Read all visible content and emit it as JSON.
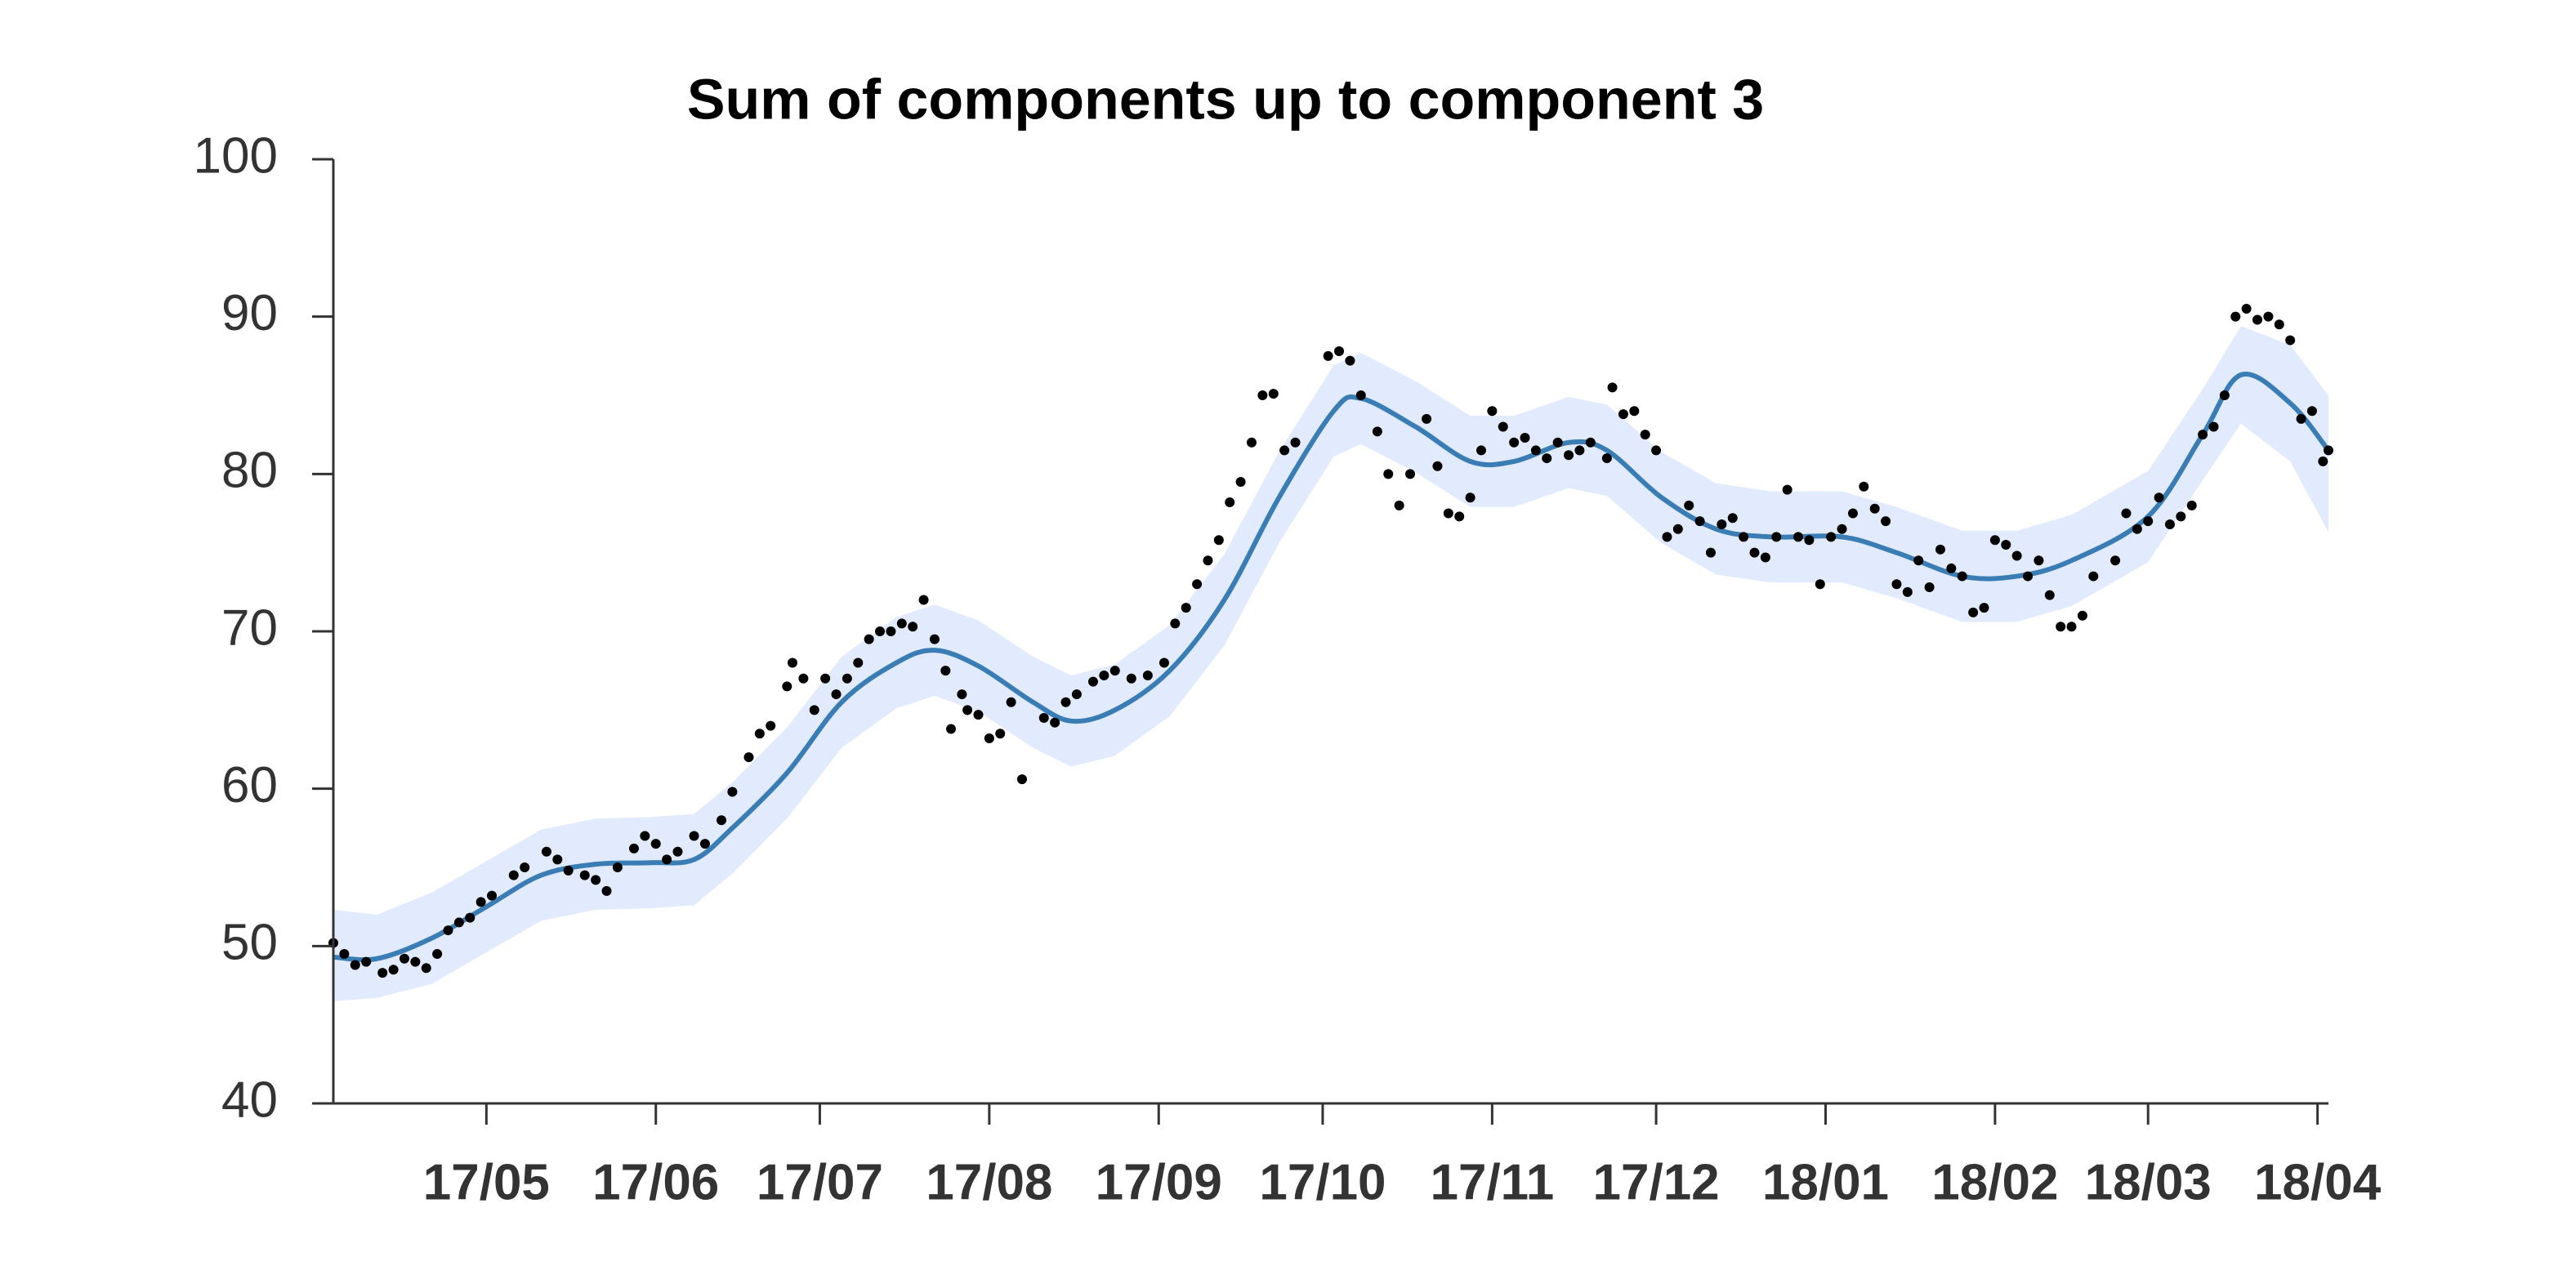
{
  "chart_data": {
    "type": "line",
    "title": "Sum of components up to component 3",
    "xlim": [
      -28,
      337
    ],
    "xticks": [
      {
        "value": 0,
        "label": "17/05"
      },
      {
        "value": 31,
        "label": "17/06"
      },
      {
        "value": 61,
        "label": "17/07"
      },
      {
        "value": 92,
        "label": "17/08"
      },
      {
        "value": 123,
        "label": "17/09"
      },
      {
        "value": 153,
        "label": "17/10"
      },
      {
        "value": 184,
        "label": "17/11"
      },
      {
        "value": 214,
        "label": "17/12"
      },
      {
        "value": 245,
        "label": "18/01"
      },
      {
        "value": 276,
        "label": "18/02"
      },
      {
        "value": 304,
        "label": "18/03"
      },
      {
        "value": 335,
        "label": "18/04"
      }
    ],
    "ylim": [
      40,
      100
    ],
    "yticks": [
      40,
      50,
      60,
      70,
      80,
      90,
      100
    ],
    "color": "#3a7db5",
    "x": [
      -28,
      -20,
      -10,
      0,
      10,
      20,
      30,
      38,
      45,
      55,
      65,
      75,
      82,
      90,
      100,
      107,
      115,
      125,
      135,
      145,
      155,
      160,
      170,
      180,
      188,
      198,
      205,
      215,
      225,
      235,
      248,
      258,
      270,
      280,
      290,
      304,
      314,
      321,
      330,
      337
    ],
    "values": [
      49.3,
      49.2,
      50.5,
      52.5,
      54.5,
      55.2,
      55.3,
      55.5,
      57.5,
      61,
      65.5,
      68,
      68.8,
      67.8,
      65.5,
      64.3,
      65,
      67.5,
      72,
      78.5,
      84,
      84.8,
      83,
      80.8,
      80.8,
      82,
      81.5,
      78.5,
      76.5,
      76,
      76,
      75,
      73.5,
      73.5,
      74.5,
      77.3,
      82.5,
      86.3,
      84.5,
      81.5
    ],
    "band": {
      "color": "#e2ebfd",
      "upper": [
        52.3,
        52,
        53.4,
        55.4,
        57.4,
        58.1,
        58.2,
        58.4,
        60.4,
        63.9,
        68.4,
        70.9,
        71.7,
        70.7,
        68.4,
        67.2,
        67.9,
        70.4,
        74.9,
        81.4,
        86.9,
        87.7,
        85.9,
        83.7,
        83.7,
        84.9,
        84.4,
        81.4,
        79.4,
        78.9,
        78.9,
        77.9,
        76.4,
        76.4,
        77.4,
        80.2,
        85.4,
        89.4,
        88.2,
        85
      ],
      "lower": [
        46.5,
        46.7,
        47.6,
        49.6,
        51.6,
        52.3,
        52.4,
        52.6,
        54.6,
        58.1,
        62.6,
        65.1,
        65.9,
        64.9,
        62.6,
        61.4,
        62.1,
        64.6,
        69.1,
        75.6,
        81.1,
        81.9,
        80.1,
        77.9,
        77.9,
        79.1,
        78.6,
        75.6,
        73.6,
        73.1,
        73.1,
        72.1,
        70.6,
        70.6,
        71.6,
        74.4,
        79.6,
        83.2,
        80.8,
        76.3
      ]
    },
    "points": {
      "color": "#000000",
      "x": [
        -28,
        -26,
        -24,
        -22,
        -19,
        -17,
        -15,
        -13,
        -11,
        -9,
        -7,
        -5,
        -3,
        -1,
        1,
        5,
        7,
        11,
        13,
        15,
        18,
        20,
        22,
        24,
        27,
        29,
        31,
        33,
        35,
        38,
        40,
        43,
        45,
        48,
        50,
        52,
        55,
        56,
        58,
        60,
        62,
        64,
        66,
        68,
        70,
        72,
        74,
        76,
        78,
        80,
        82,
        84,
        85,
        87,
        88,
        90,
        92,
        94,
        96,
        98,
        102,
        104,
        106,
        108,
        111,
        113,
        115,
        118,
        121,
        124,
        126,
        128,
        130,
        132,
        134,
        136,
        138,
        140,
        142,
        144,
        146,
        148,
        154,
        156,
        158,
        160,
        163,
        165,
        167,
        169,
        172,
        174,
        176,
        178,
        180,
        182,
        184,
        186,
        188,
        190,
        192,
        194,
        196,
        198,
        200,
        202,
        205,
        206,
        208,
        210,
        212,
        214,
        216,
        218,
        220,
        222,
        224,
        226,
        228,
        230,
        232,
        234,
        236,
        238,
        240,
        242,
        244,
        246,
        248,
        250,
        252,
        254,
        256,
        258,
        260,
        262,
        264,
        266,
        268,
        270,
        272,
        274,
        276,
        278,
        280,
        282,
        284,
        286,
        288,
        290,
        292,
        294,
        298,
        300,
        302,
        304,
        306,
        308,
        310,
        312,
        314,
        316,
        318,
        320,
        322,
        324,
        326,
        328,
        330,
        332,
        334,
        336,
        337
      ],
      "values": [
        50.2,
        49.5,
        48.8,
        49,
        48.3,
        48.5,
        49.2,
        49,
        48.6,
        49.5,
        51,
        51.5,
        51.8,
        52.8,
        53.2,
        54.5,
        55,
        56,
        55.5,
        54.8,
        54.5,
        54.2,
        53.5,
        55,
        56.2,
        57,
        56.5,
        55.5,
        56,
        57,
        56.5,
        58,
        59.8,
        62,
        63.5,
        64,
        66.5,
        68,
        67,
        65,
        67,
        66,
        67,
        68,
        69.5,
        70,
        70,
        70.5,
        70.3,
        72,
        69.5,
        67.5,
        63.8,
        66,
        65,
        64.7,
        63.2,
        63.5,
        65.5,
        60.6,
        64.5,
        64.2,
        65.5,
        66,
        66.8,
        67.2,
        67.5,
        67,
        67.2,
        68,
        70.5,
        71.5,
        73,
        74.5,
        75.8,
        78.2,
        79.5,
        82,
        85,
        85.1,
        81.5,
        82,
        87.5,
        87.8,
        87.2,
        85,
        82.7,
        80,
        78,
        80,
        83.5,
        80.5,
        77.5,
        77.3,
        78.5,
        81.5,
        84,
        83,
        82,
        82.3,
        81.5,
        81,
        82,
        81.2,
        81.5,
        82,
        81,
        85.5,
        83.8,
        84,
        82.5,
        81.5,
        76,
        76.5,
        78,
        77,
        75,
        76.8,
        77.2,
        76,
        75,
        74.7,
        76,
        79,
        76,
        75.8,
        73,
        76,
        76.5,
        77.5,
        79.2,
        77.8,
        77,
        73,
        72.5,
        74.5,
        72.8,
        75.2,
        74,
        73.5,
        71.2,
        71.5,
        75.8,
        75.5,
        74.8,
        73.5,
        74.5,
        72.3,
        70.3,
        70.3,
        71,
        73.5,
        74.5,
        77.5,
        76.5,
        77,
        78.5,
        76.8,
        77.3,
        78,
        82.5,
        83,
        85,
        90,
        90.5,
        89.8,
        90,
        89.5,
        88.5,
        83.5,
        84,
        80.8,
        81.5
      ]
    }
  }
}
